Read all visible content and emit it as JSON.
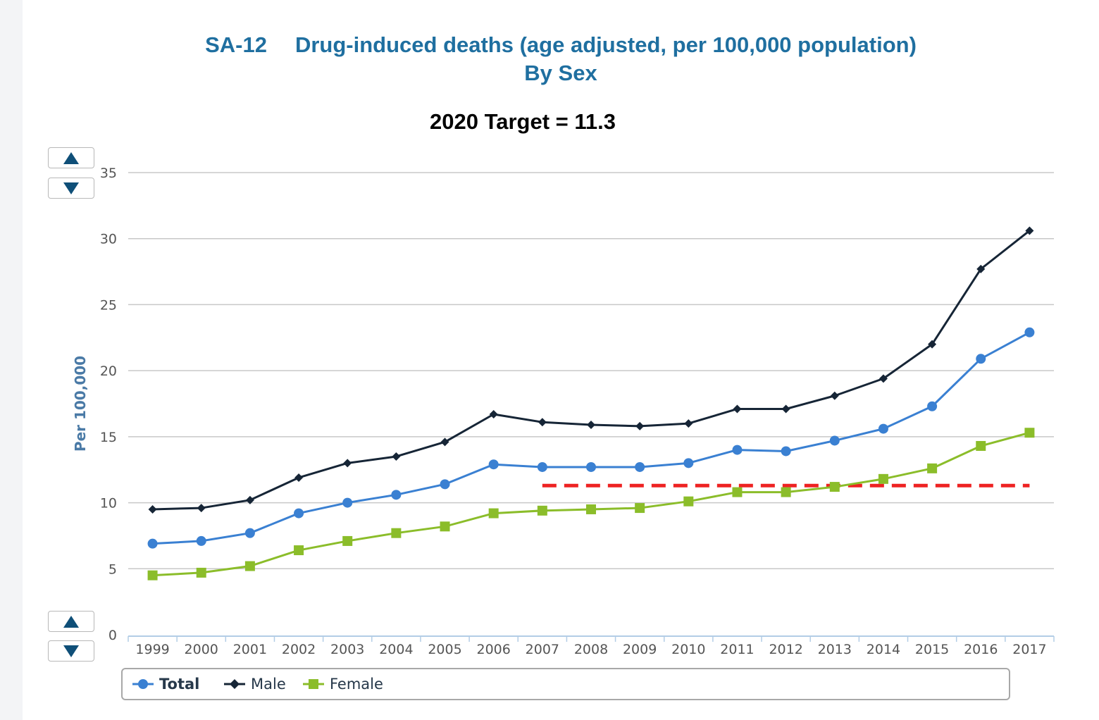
{
  "title": {
    "code": "SA-12",
    "main": "Drug-induced deaths (age adjusted, per 100,000 population)",
    "sub": "By Sex"
  },
  "target_text": "2020 Target = 11.3",
  "colors": {
    "total": "#3a80d2",
    "male": "#162536",
    "female": "#8bbd2a",
    "target": "#ee2222",
    "title": "#1f6fa0"
  },
  "controls": {
    "top_up_icon": "triangle-up-icon",
    "top_down_icon": "triangle-down-icon",
    "bottom_up_icon": "triangle-up-icon",
    "bottom_down_icon": "triangle-down-icon"
  },
  "legend": [
    {
      "label": "Total",
      "bold": true,
      "marker": "circle"
    },
    {
      "label": "Male",
      "bold": false,
      "marker": "diamond"
    },
    {
      "label": "Female",
      "bold": false,
      "marker": "square"
    }
  ],
  "chart_data": {
    "type": "line",
    "title": "SA-12 Drug-induced deaths (age adjusted, per 100,000 population) By Sex",
    "subtitle": "2020 Target = 11.3",
    "ylabel": "Per 100,000",
    "xlabel": "",
    "ylim": [
      0,
      35
    ],
    "yticks": [
      0,
      5,
      10,
      15,
      20,
      25,
      30,
      35
    ],
    "grid": true,
    "legend_position": "bottom",
    "categories": [
      "1999",
      "2000",
      "2001",
      "2002",
      "2003",
      "2004",
      "2005",
      "2006",
      "2007",
      "2008",
      "2009",
      "2010",
      "2011",
      "2012",
      "2013",
      "2014",
      "2015",
      "2016",
      "2017"
    ],
    "series": [
      {
        "name": "Total",
        "marker": "circle",
        "values": [
          6.9,
          7.1,
          7.7,
          9.2,
          10.0,
          10.6,
          11.4,
          12.9,
          12.7,
          12.7,
          12.7,
          13.0,
          14.0,
          13.9,
          14.7,
          15.6,
          17.3,
          20.9,
          22.9
        ]
      },
      {
        "name": "Male",
        "marker": "diamond",
        "values": [
          9.5,
          9.6,
          10.2,
          11.9,
          13.0,
          13.5,
          14.6,
          16.7,
          16.1,
          15.9,
          15.8,
          16.0,
          17.1,
          17.1,
          18.1,
          19.4,
          22.0,
          27.7,
          30.6
        ]
      },
      {
        "name": "Female",
        "marker": "square",
        "values": [
          4.5,
          4.7,
          5.2,
          6.4,
          7.1,
          7.7,
          8.2,
          9.2,
          9.4,
          9.5,
          9.6,
          10.1,
          10.8,
          10.8,
          11.2,
          11.8,
          12.6,
          14.3,
          15.3
        ]
      }
    ],
    "target": {
      "value": 11.3,
      "from": "2007",
      "to": "2017",
      "style": "dashed"
    }
  }
}
